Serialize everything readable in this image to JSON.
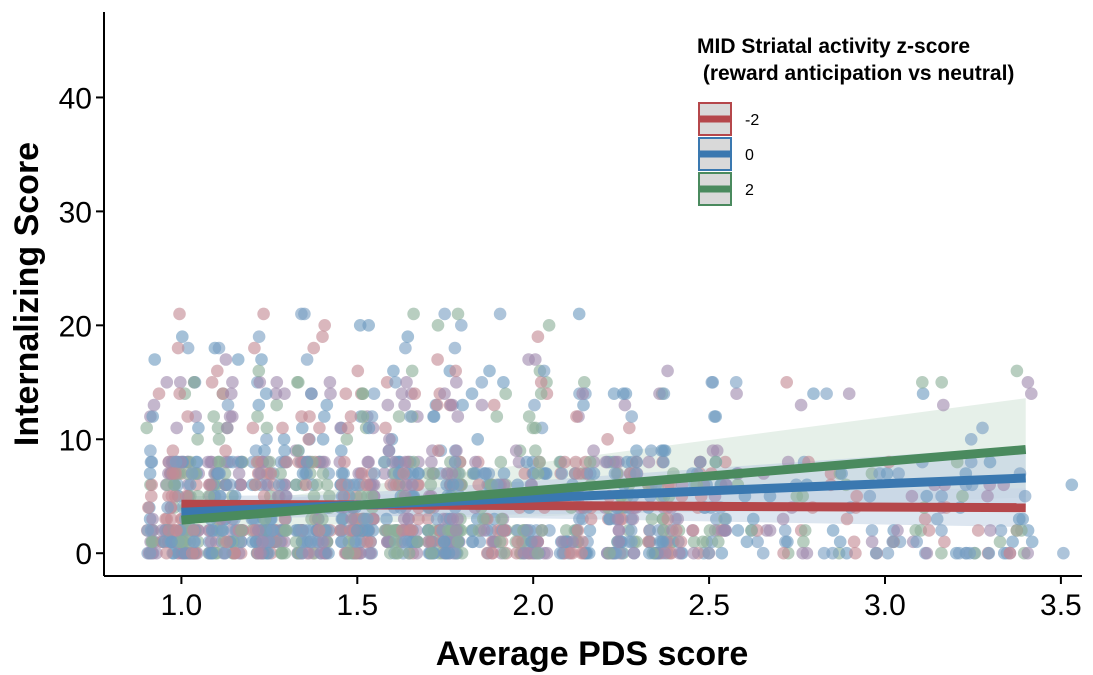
{
  "chart_data": {
    "type": "scatter",
    "title": "",
    "xlabel": "Average PDS score",
    "ylabel": "Internalizing Score",
    "xlim": [
      0.78,
      3.56
    ],
    "ylim": [
      -2,
      47.5
    ],
    "x_ticks": [
      "1.0",
      "1.5",
      "2.0",
      "2.5",
      "3.0",
      "3.5"
    ],
    "x_tick_values": [
      1.0,
      1.5,
      2.0,
      2.5,
      3.0,
      3.5
    ],
    "y_ticks": [
      "0",
      "10",
      "20",
      "30",
      "40"
    ],
    "y_tick_values": [
      0,
      10,
      20,
      30,
      40
    ],
    "grid": false,
    "legend": {
      "title_line1": "MID Striatal activity z-score",
      "title_line2": " (reward anticipation vs neutral)",
      "placement": "top-right",
      "entries": [
        {
          "label": "-2",
          "color": "#B5474B"
        },
        {
          "label": "0",
          "color": "#3A78B0"
        },
        {
          "label": "2",
          "color": "#4A8A5E"
        }
      ]
    },
    "point_colors": [
      "#7A9FC4",
      "#A08BAE",
      "#6E9BC0",
      "#C48A94",
      "#8CB09A"
    ],
    "point_count": 1600,
    "series": [
      {
        "name": "-2",
        "color": "#B5474B",
        "band_color": "#C7D5E6",
        "x": [
          1.0,
          3.4
        ],
        "y": [
          4.3,
          4.0
        ],
        "ci_low": [
          3.6,
          2.3
        ],
        "ci_high": [
          5.0,
          5.7
        ]
      },
      {
        "name": "0",
        "color": "#3A78B0",
        "band_color": "#BFD0E2",
        "x": [
          1.0,
          3.4
        ],
        "y": [
          3.6,
          6.6
        ],
        "ci_low": [
          3.0,
          4.0
        ],
        "ci_high": [
          4.2,
          9.4
        ]
      },
      {
        "name": "2",
        "color": "#4A8A5E",
        "band_color": "#D6E6DA",
        "x": [
          1.0,
          3.4
        ],
        "y": [
          2.9,
          9.1
        ],
        "ci_low": [
          2.0,
          4.9
        ],
        "ci_high": [
          3.8,
          13.6
        ]
      }
    ]
  }
}
